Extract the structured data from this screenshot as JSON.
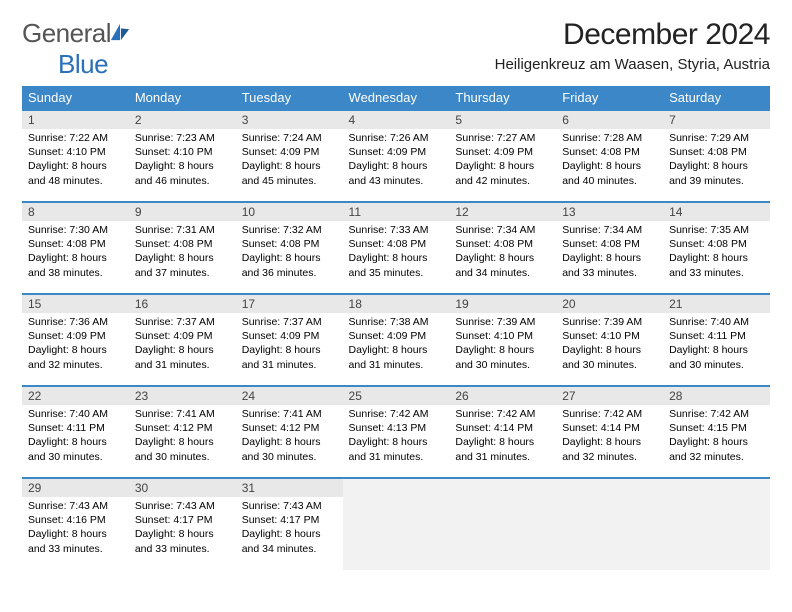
{
  "logo": {
    "general": "General",
    "blue": "Blue"
  },
  "title": "December 2024",
  "location": "Heiligenkreuz am Waasen, Styria, Austria",
  "colors": {
    "header_bg": "#3b87c8",
    "header_fg": "#ffffff",
    "daynum_bg": "#e8e8e8",
    "row_border": "#3b87c8",
    "empty_bg": "#f2f2f2",
    "logo_blue": "#2970b8",
    "logo_gray": "#555555"
  },
  "day_headers": [
    "Sunday",
    "Monday",
    "Tuesday",
    "Wednesday",
    "Thursday",
    "Friday",
    "Saturday"
  ],
  "weeks": [
    [
      {
        "n": "1",
        "sr": "7:22 AM",
        "ss": "4:10 PM",
        "dl": "8 hours and 48 minutes."
      },
      {
        "n": "2",
        "sr": "7:23 AM",
        "ss": "4:10 PM",
        "dl": "8 hours and 46 minutes."
      },
      {
        "n": "3",
        "sr": "7:24 AM",
        "ss": "4:09 PM",
        "dl": "8 hours and 45 minutes."
      },
      {
        "n": "4",
        "sr": "7:26 AM",
        "ss": "4:09 PM",
        "dl": "8 hours and 43 minutes."
      },
      {
        "n": "5",
        "sr": "7:27 AM",
        "ss": "4:09 PM",
        "dl": "8 hours and 42 minutes."
      },
      {
        "n": "6",
        "sr": "7:28 AM",
        "ss": "4:08 PM",
        "dl": "8 hours and 40 minutes."
      },
      {
        "n": "7",
        "sr": "7:29 AM",
        "ss": "4:08 PM",
        "dl": "8 hours and 39 minutes."
      }
    ],
    [
      {
        "n": "8",
        "sr": "7:30 AM",
        "ss": "4:08 PM",
        "dl": "8 hours and 38 minutes."
      },
      {
        "n": "9",
        "sr": "7:31 AM",
        "ss": "4:08 PM",
        "dl": "8 hours and 37 minutes."
      },
      {
        "n": "10",
        "sr": "7:32 AM",
        "ss": "4:08 PM",
        "dl": "8 hours and 36 minutes."
      },
      {
        "n": "11",
        "sr": "7:33 AM",
        "ss": "4:08 PM",
        "dl": "8 hours and 35 minutes."
      },
      {
        "n": "12",
        "sr": "7:34 AM",
        "ss": "4:08 PM",
        "dl": "8 hours and 34 minutes."
      },
      {
        "n": "13",
        "sr": "7:34 AM",
        "ss": "4:08 PM",
        "dl": "8 hours and 33 minutes."
      },
      {
        "n": "14",
        "sr": "7:35 AM",
        "ss": "4:08 PM",
        "dl": "8 hours and 33 minutes."
      }
    ],
    [
      {
        "n": "15",
        "sr": "7:36 AM",
        "ss": "4:09 PM",
        "dl": "8 hours and 32 minutes."
      },
      {
        "n": "16",
        "sr": "7:37 AM",
        "ss": "4:09 PM",
        "dl": "8 hours and 31 minutes."
      },
      {
        "n": "17",
        "sr": "7:37 AM",
        "ss": "4:09 PM",
        "dl": "8 hours and 31 minutes."
      },
      {
        "n": "18",
        "sr": "7:38 AM",
        "ss": "4:09 PM",
        "dl": "8 hours and 31 minutes."
      },
      {
        "n": "19",
        "sr": "7:39 AM",
        "ss": "4:10 PM",
        "dl": "8 hours and 30 minutes."
      },
      {
        "n": "20",
        "sr": "7:39 AM",
        "ss": "4:10 PM",
        "dl": "8 hours and 30 minutes."
      },
      {
        "n": "21",
        "sr": "7:40 AM",
        "ss": "4:11 PM",
        "dl": "8 hours and 30 minutes."
      }
    ],
    [
      {
        "n": "22",
        "sr": "7:40 AM",
        "ss": "4:11 PM",
        "dl": "8 hours and 30 minutes."
      },
      {
        "n": "23",
        "sr": "7:41 AM",
        "ss": "4:12 PM",
        "dl": "8 hours and 30 minutes."
      },
      {
        "n": "24",
        "sr": "7:41 AM",
        "ss": "4:12 PM",
        "dl": "8 hours and 30 minutes."
      },
      {
        "n": "25",
        "sr": "7:42 AM",
        "ss": "4:13 PM",
        "dl": "8 hours and 31 minutes."
      },
      {
        "n": "26",
        "sr": "7:42 AM",
        "ss": "4:14 PM",
        "dl": "8 hours and 31 minutes."
      },
      {
        "n": "27",
        "sr": "7:42 AM",
        "ss": "4:14 PM",
        "dl": "8 hours and 32 minutes."
      },
      {
        "n": "28",
        "sr": "7:42 AM",
        "ss": "4:15 PM",
        "dl": "8 hours and 32 minutes."
      }
    ],
    [
      {
        "n": "29",
        "sr": "7:43 AM",
        "ss": "4:16 PM",
        "dl": "8 hours and 33 minutes."
      },
      {
        "n": "30",
        "sr": "7:43 AM",
        "ss": "4:17 PM",
        "dl": "8 hours and 33 minutes."
      },
      {
        "n": "31",
        "sr": "7:43 AM",
        "ss": "4:17 PM",
        "dl": "8 hours and 34 minutes."
      },
      null,
      null,
      null,
      null
    ]
  ],
  "labels": {
    "sunrise": "Sunrise: ",
    "sunset": "Sunset: ",
    "daylight": "Daylight: "
  }
}
